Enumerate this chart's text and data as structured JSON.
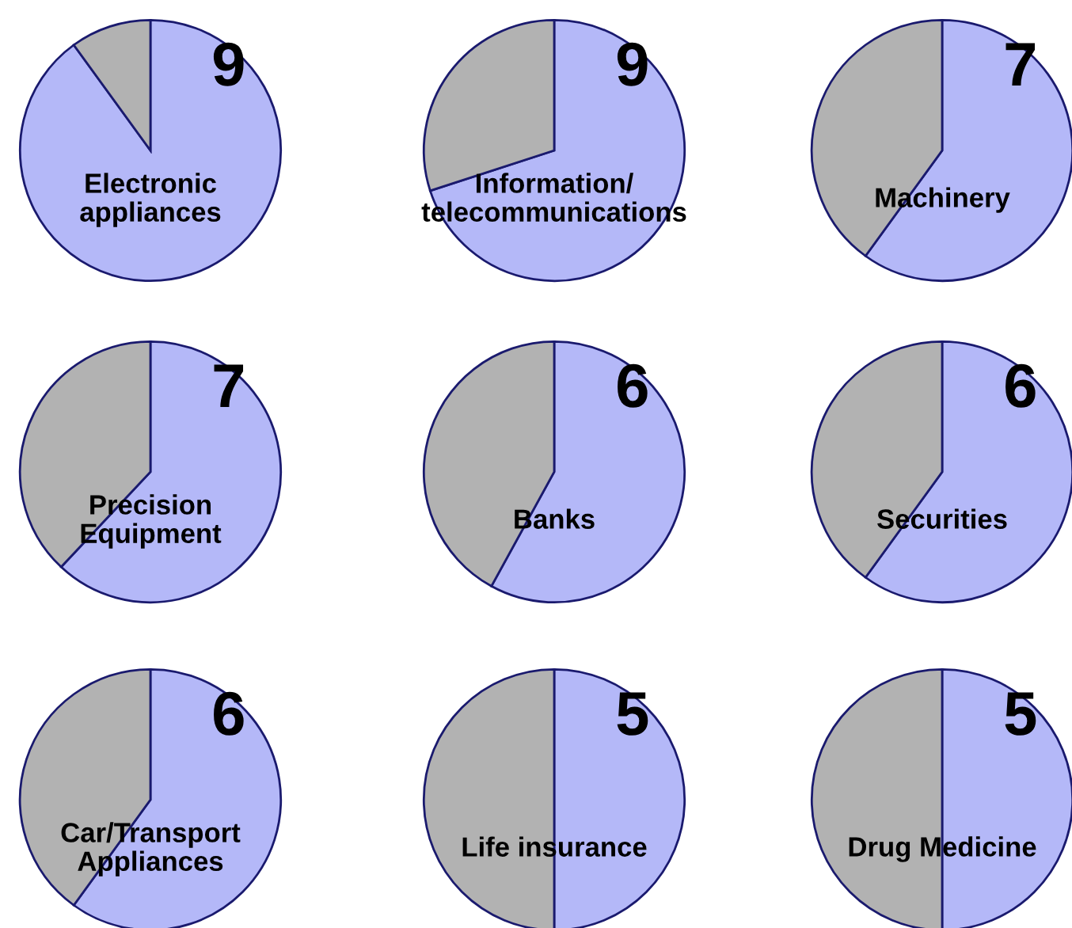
{
  "chart_data": [
    {
      "type": "pie",
      "title": "Electronic\nappliances",
      "categories": [
        null,
        null
      ],
      "values": [
        90,
        10
      ],
      "colors": [
        "#b4b8f8",
        "#b2b2b2"
      ],
      "annotations": [
        "9"
      ]
    },
    {
      "type": "pie",
      "title": "Information/\ntelecommunications",
      "categories": [
        null,
        null
      ],
      "values": [
        70,
        30
      ],
      "colors": [
        "#b4b8f8",
        "#b2b2b2"
      ],
      "annotations": [
        "9"
      ]
    },
    {
      "type": "pie",
      "title": "Machinery",
      "categories": [
        null,
        null
      ],
      "values": [
        60,
        40
      ],
      "colors": [
        "#b4b8f8",
        "#b2b2b2"
      ],
      "annotations": [
        "7"
      ]
    },
    {
      "type": "pie",
      "title": "Precision\nEquipment",
      "categories": [
        null,
        null
      ],
      "values": [
        62,
        38
      ],
      "colors": [
        "#b4b8f8",
        "#b2b2b2"
      ],
      "annotations": [
        "7"
      ]
    },
    {
      "type": "pie",
      "title": "Banks",
      "categories": [
        null,
        null
      ],
      "values": [
        58,
        42
      ],
      "colors": [
        "#b4b8f8",
        "#b2b2b2"
      ],
      "annotations": [
        "6"
      ]
    },
    {
      "type": "pie",
      "title": "Securities",
      "categories": [
        null,
        null
      ],
      "values": [
        60,
        40
      ],
      "colors": [
        "#b4b8f8",
        "#b2b2b2"
      ],
      "annotations": [
        "6"
      ]
    },
    {
      "type": "pie",
      "title": "Car/Transport\nAppliances",
      "categories": [
        null,
        null
      ],
      "values": [
        60,
        40
      ],
      "colors": [
        "#b4b8f8",
        "#b2b2b2"
      ],
      "annotations": [
        "6"
      ]
    },
    {
      "type": "pie",
      "title": "Life insurance",
      "categories": [
        null,
        null
      ],
      "values": [
        50,
        50
      ],
      "colors": [
        "#b4b8f8",
        "#b2b2b2"
      ],
      "annotations": [
        "5"
      ]
    },
    {
      "type": "pie",
      "title": "Drug Medicine",
      "categories": [
        null,
        null
      ],
      "values": [
        50,
        50
      ],
      "colors": [
        "#b4b8f8",
        "#b2b2b2"
      ],
      "annotations": [
        "5"
      ]
    }
  ]
}
